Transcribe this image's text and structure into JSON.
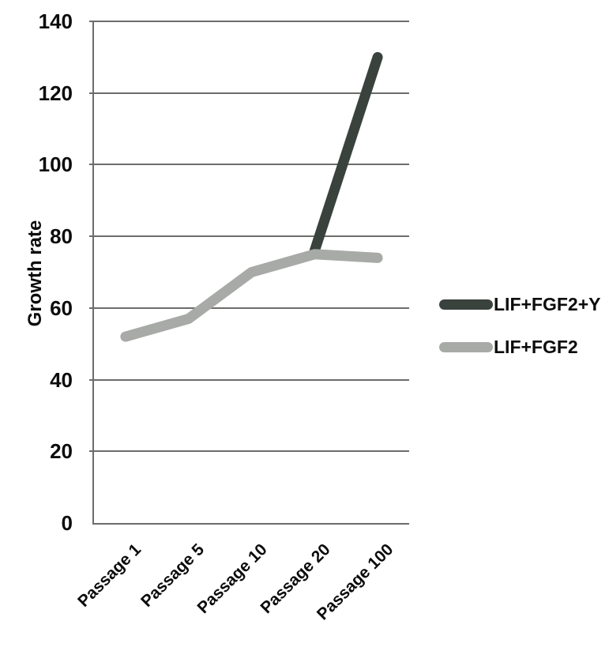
{
  "chart_data": {
    "type": "line",
    "categories": [
      "Passage 1",
      "Passage 5",
      "Passage 10",
      "Passage 20",
      "Passage 100"
    ],
    "series": [
      {
        "name": "LIF+FGF2+Y",
        "color": "#3a423e",
        "values": [
          null,
          null,
          null,
          76,
          130
        ]
      },
      {
        "name": "LIF+FGF2",
        "color": "#a8aaa7",
        "values": [
          52,
          57,
          70,
          75,
          74
        ]
      }
    ],
    "ylabel": "Growth rate",
    "xlabel": "",
    "ylim": [
      0,
      140
    ],
    "ytick_step": 20,
    "grid": true,
    "legend_position": "right",
    "axis_color": "#6b6d6b",
    "text_color": "#0c0c0c",
    "line_width": 13
  }
}
